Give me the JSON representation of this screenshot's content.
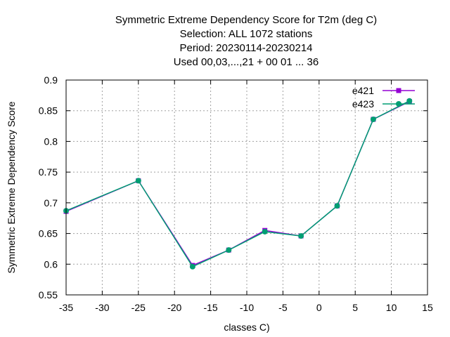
{
  "chart_data": {
    "type": "line",
    "title_lines": [
      "Symmetric Extreme Dependency Score  for T2m (deg C)",
      "Selection: ALL   1072 stations",
      "Period: 20230114-20230214",
      "Used  00,03,...,21  + 00 01 ... 36"
    ],
    "xlabel": "classes C)",
    "ylabel": "Symmetric Extreme Dependency Score",
    "xlim": [
      -35,
      15
    ],
    "ylim": [
      0.55,
      0.9
    ],
    "xticks": [
      "-35",
      "-30",
      "-25",
      "-20",
      "-15",
      "-10",
      "-5",
      "0",
      "5",
      "10",
      "15"
    ],
    "yticks": [
      "0.55",
      "0.6",
      "0.65",
      "0.7",
      "0.75",
      "0.8",
      "0.85",
      "0.9"
    ],
    "grid": true,
    "legend_position": "top-right",
    "series": [
      {
        "name": "e421",
        "color": "#9400d3",
        "marker": "square",
        "x": [
          -35,
          -25,
          -17.5,
          -12.5,
          -7.5,
          -2.5,
          2.5,
          7.5,
          12.5
        ],
        "y": [
          0.686,
          0.736,
          0.598,
          0.623,
          0.655,
          0.646,
          0.695,
          0.836,
          0.865
        ]
      },
      {
        "name": "e423",
        "color": "#009e73",
        "marker": "circle",
        "x": [
          -35,
          -25,
          -17.5,
          -12.5,
          -7.5,
          -2.5,
          2.5,
          7.5,
          12.5
        ],
        "y": [
          0.687,
          0.736,
          0.596,
          0.623,
          0.653,
          0.646,
          0.695,
          0.836,
          0.866
        ]
      }
    ]
  }
}
